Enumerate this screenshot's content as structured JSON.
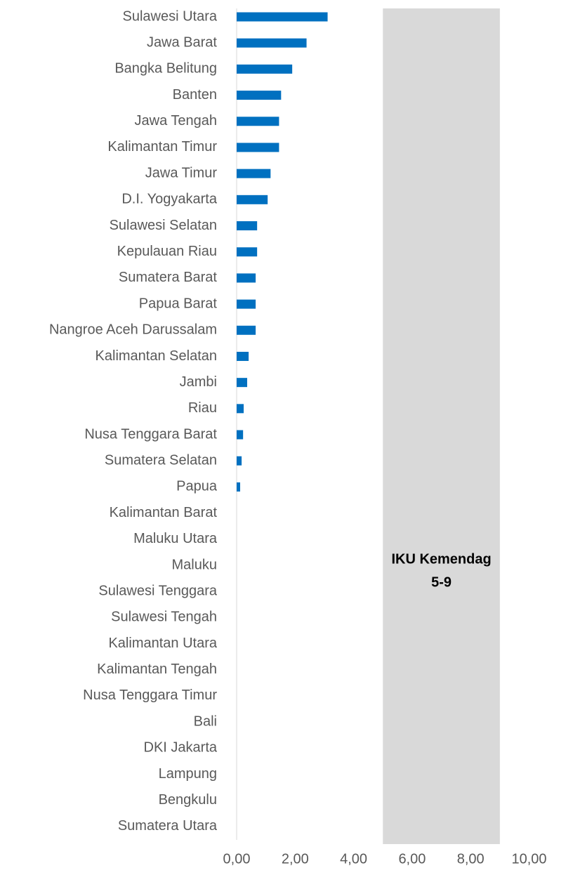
{
  "chart_data": {
    "type": "bar",
    "orientation": "horizontal",
    "categories": [
      "Sulawesi Utara",
      "Jawa Barat",
      "Bangka Belitung",
      "Banten",
      "Jawa Tengah",
      "Kalimantan Timur",
      "Jawa Timur",
      "D.I. Yogyakarta",
      "Sulawesi Selatan",
      "Kepulauan Riau",
      "Sumatera Barat",
      "Papua Barat",
      "Nangroe Aceh Darussalam",
      "Kalimantan Selatan",
      "Jambi",
      "Riau",
      "Nusa Tenggara Barat",
      "Sumatera Selatan",
      "Papua",
      "Kalimantan Barat",
      "Maluku Utara",
      "Maluku",
      "Sulawesi Tenggara",
      "Sulawesi Tengah",
      "Kalimantan Utara",
      "Kalimantan Tengah",
      "Nusa Tenggara Timur",
      "Bali",
      "DKI Jakarta",
      "Lampung",
      "Bengkulu",
      "Sumatera Utara"
    ],
    "values": [
      3.11,
      2.39,
      1.9,
      1.52,
      1.45,
      1.45,
      1.16,
      1.06,
      0.7,
      0.7,
      0.65,
      0.65,
      0.65,
      0.41,
      0.36,
      0.24,
      0.22,
      0.17,
      0.12,
      0,
      0,
      0,
      0,
      0,
      0,
      0,
      0,
      0,
      0,
      0,
      0,
      0
    ],
    "color": "#0070c0",
    "xlim": [
      0,
      11.5
    ],
    "xticks": [
      {
        "value": 0,
        "label": "0,00"
      },
      {
        "value": 2,
        "label": "2,00"
      },
      {
        "value": 4,
        "label": "4,00"
      },
      {
        "value": 6,
        "label": "6,00"
      },
      {
        "value": 8,
        "label": "8,00"
      },
      {
        "value": 10,
        "label": "10,00"
      }
    ],
    "band": {
      "from": 5,
      "to": 9,
      "color": "#d9d9d9"
    },
    "annotation": [
      "IKU Kemendag",
      "5-9"
    ]
  }
}
